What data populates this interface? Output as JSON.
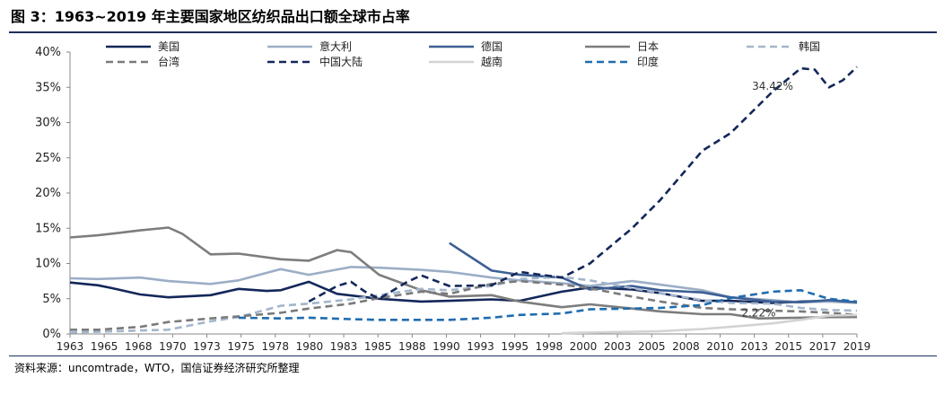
{
  "figure": {
    "title": "图 3：1963~2019 年主要国家地区纺织品出口额全球市占率",
    "source": "资料来源：uncomtrade，WTO，国信证券经济研究所整理"
  },
  "chart_data": {
    "type": "line",
    "ylim": [
      0,
      40
    ],
    "y_ticks": [
      "0%",
      "5%",
      "10%",
      "15%",
      "20%",
      "25%",
      "30%",
      "35%",
      "40%"
    ],
    "x_tick_labels": [
      "1963",
      "1965",
      "1968",
      "1970",
      "1973",
      "1975",
      "1978",
      "1980",
      "1983",
      "1985",
      "1988",
      "1990",
      "1993",
      "1995",
      "1998",
      "2000",
      "2003",
      "2005",
      "2008",
      "2010",
      "2013",
      "2015",
      "2017",
      "2019"
    ],
    "grid": false,
    "legend_position": "top",
    "annotations": [
      {
        "text": "34.42%",
        "x": 2013,
        "y": 34.4
      },
      {
        "text": "2.22%",
        "x": 2012,
        "y": 2.2
      }
    ],
    "series": [
      {
        "name": "美国",
        "color": "#13275a",
        "dash": "solid",
        "points": [
          [
            1963,
            7.3
          ],
          [
            1965,
            6.9
          ],
          [
            1966,
            6.5
          ],
          [
            1968,
            5.6
          ],
          [
            1970,
            5.2
          ],
          [
            1973,
            5.5
          ],
          [
            1975,
            6.4
          ],
          [
            1977,
            6.1
          ],
          [
            1978,
            6.2
          ],
          [
            1980,
            7.4
          ],
          [
            1982,
            5.7
          ],
          [
            1985,
            5.0
          ],
          [
            1988,
            4.6
          ],
          [
            1990,
            4.7
          ],
          [
            1993,
            4.9
          ],
          [
            1995,
            4.7
          ],
          [
            1998,
            6.0
          ],
          [
            2000,
            6.6
          ],
          [
            2003,
            6.3
          ],
          [
            2005,
            5.8
          ],
          [
            2008,
            4.7
          ],
          [
            2010,
            4.7
          ],
          [
            2013,
            4.4
          ],
          [
            2015,
            4.6
          ],
          [
            2017,
            4.7
          ],
          [
            2019,
            4.5
          ]
        ]
      },
      {
        "name": "意大利",
        "color": "#9caec6",
        "dash": "solid",
        "points": [
          [
            1963,
            7.9
          ],
          [
            1965,
            7.8
          ],
          [
            1968,
            8.0
          ],
          [
            1970,
            7.5
          ],
          [
            1973,
            7.1
          ],
          [
            1975,
            7.6
          ],
          [
            1978,
            9.2
          ],
          [
            1980,
            8.4
          ],
          [
            1983,
            9.5
          ],
          [
            1985,
            9.4
          ],
          [
            1988,
            9.1
          ],
          [
            1990,
            8.8
          ],
          [
            1993,
            8.0
          ],
          [
            1995,
            7.6
          ],
          [
            1998,
            7.2
          ],
          [
            2000,
            6.8
          ],
          [
            2003,
            7.5
          ],
          [
            2005,
            7.0
          ],
          [
            2008,
            6.2
          ],
          [
            2010,
            5.2
          ],
          [
            2013,
            4.8
          ],
          [
            2015,
            4.5
          ],
          [
            2017,
            4.6
          ],
          [
            2019,
            4.4
          ]
        ]
      },
      {
        "name": "德国",
        "color": "#3d5f94",
        "dash": "solid",
        "points": [
          [
            1990,
            12.9
          ],
          [
            1993,
            9.0
          ],
          [
            1995,
            8.4
          ],
          [
            1998,
            8.0
          ],
          [
            2000,
            6.3
          ],
          [
            2003,
            6.8
          ],
          [
            2005,
            6.2
          ],
          [
            2008,
            5.9
          ],
          [
            2010,
            5.2
          ],
          [
            2013,
            4.6
          ],
          [
            2015,
            4.5
          ],
          [
            2017,
            4.8
          ],
          [
            2019,
            4.5
          ]
        ]
      },
      {
        "name": "日本",
        "color": "#7d7d7d",
        "dash": "solid",
        "points": [
          [
            1963,
            13.7
          ],
          [
            1965,
            14.0
          ],
          [
            1968,
            14.7
          ],
          [
            1970,
            15.1
          ],
          [
            1971,
            14.2
          ],
          [
            1973,
            11.3
          ],
          [
            1975,
            11.4
          ],
          [
            1978,
            10.6
          ],
          [
            1980,
            10.4
          ],
          [
            1982,
            11.9
          ],
          [
            1983,
            11.6
          ],
          [
            1985,
            8.4
          ],
          [
            1988,
            6.2
          ],
          [
            1990,
            5.3
          ],
          [
            1993,
            5.5
          ],
          [
            1995,
            4.6
          ],
          [
            1998,
            3.8
          ],
          [
            2000,
            4.2
          ],
          [
            2003,
            3.6
          ],
          [
            2005,
            3.2
          ],
          [
            2008,
            2.8
          ],
          [
            2010,
            2.8
          ],
          [
            2012,
            2.2
          ],
          [
            2015,
            2.3
          ],
          [
            2017,
            2.4
          ],
          [
            2019,
            2.4
          ]
        ]
      },
      {
        "name": "韩国",
        "color": "#a3b6cc",
        "dash": "dashed",
        "points": [
          [
            1963,
            0.2
          ],
          [
            1965,
            0.3
          ],
          [
            1968,
            0.5
          ],
          [
            1970,
            0.6
          ],
          [
            1973,
            1.8
          ],
          [
            1975,
            2.4
          ],
          [
            1978,
            4.0
          ],
          [
            1980,
            4.3
          ],
          [
            1983,
            4.9
          ],
          [
            1985,
            5.5
          ],
          [
            1988,
            6.4
          ],
          [
            1990,
            6.2
          ],
          [
            1993,
            6.8
          ],
          [
            1995,
            7.8
          ],
          [
            1998,
            8.1
          ],
          [
            2000,
            7.6
          ],
          [
            2003,
            6.5
          ],
          [
            2005,
            5.8
          ],
          [
            2008,
            4.8
          ],
          [
            2010,
            4.4
          ],
          [
            2013,
            4.3
          ],
          [
            2015,
            3.7
          ],
          [
            2017,
            3.4
          ],
          [
            2019,
            3.3
          ]
        ]
      },
      {
        "name": "台湾",
        "color": "#7a7a7a",
        "dash": "dashed",
        "points": [
          [
            1963,
            0.6
          ],
          [
            1965,
            0.6
          ],
          [
            1968,
            1.0
          ],
          [
            1970,
            1.7
          ],
          [
            1973,
            2.2
          ],
          [
            1975,
            2.5
          ],
          [
            1978,
            3.0
          ],
          [
            1980,
            3.6
          ],
          [
            1983,
            4.3
          ],
          [
            1985,
            5.1
          ],
          [
            1988,
            6.0
          ],
          [
            1990,
            5.7
          ],
          [
            1993,
            7.1
          ],
          [
            1995,
            7.5
          ],
          [
            1998,
            7.0
          ],
          [
            2000,
            6.5
          ],
          [
            2003,
            5.3
          ],
          [
            2005,
            4.6
          ],
          [
            2008,
            3.7
          ],
          [
            2010,
            3.5
          ],
          [
            2013,
            3.3
          ],
          [
            2015,
            3.2
          ],
          [
            2017,
            3.0
          ],
          [
            2019,
            2.7
          ]
        ]
      },
      {
        "name": "中国大陆",
        "color": "#13275a",
        "dash": "dashed",
        "points": [
          [
            1980,
            4.6
          ],
          [
            1982,
            6.8
          ],
          [
            1983,
            7.4
          ],
          [
            1984,
            6.0
          ],
          [
            1985,
            5.0
          ],
          [
            1987,
            7.4
          ],
          [
            1988,
            8.3
          ],
          [
            1990,
            6.8
          ],
          [
            1993,
            6.9
          ],
          [
            1995,
            8.8
          ],
          [
            1998,
            8.0
          ],
          [
            2000,
            10.0
          ],
          [
            2003,
            15.0
          ],
          [
            2005,
            19.0
          ],
          [
            2008,
            26.0
          ],
          [
            2010,
            28.5
          ],
          [
            2013,
            34.4
          ],
          [
            2015,
            37.7
          ],
          [
            2016,
            37.5
          ],
          [
            2017,
            35.0
          ],
          [
            2018,
            36.0
          ],
          [
            2019,
            37.9
          ]
        ]
      },
      {
        "name": "越南",
        "color": "#d3d3d3",
        "dash": "solid",
        "points": [
          [
            1998,
            0.1
          ],
          [
            2000,
            0.2
          ],
          [
            2003,
            0.3
          ],
          [
            2005,
            0.4
          ],
          [
            2008,
            0.7
          ],
          [
            2010,
            1.0
          ],
          [
            2013,
            1.5
          ],
          [
            2015,
            2.0
          ],
          [
            2017,
            2.6
          ],
          [
            2019,
            2.7
          ]
        ]
      },
      {
        "name": "印度",
        "color": "#1f6cb0",
        "dash": "dashed",
        "points": [
          [
            1975,
            2.3
          ],
          [
            1978,
            2.2
          ],
          [
            1980,
            2.3
          ],
          [
            1983,
            2.1
          ],
          [
            1985,
            2.0
          ],
          [
            1988,
            2.0
          ],
          [
            1990,
            2.0
          ],
          [
            1993,
            2.3
          ],
          [
            1995,
            2.7
          ],
          [
            1998,
            2.9
          ],
          [
            2000,
            3.5
          ],
          [
            2003,
            3.6
          ],
          [
            2005,
            3.7
          ],
          [
            2008,
            4.1
          ],
          [
            2010,
            5.1
          ],
          [
            2013,
            6.0
          ],
          [
            2015,
            6.2
          ],
          [
            2017,
            5.0
          ],
          [
            2019,
            4.6
          ]
        ]
      }
    ]
  }
}
